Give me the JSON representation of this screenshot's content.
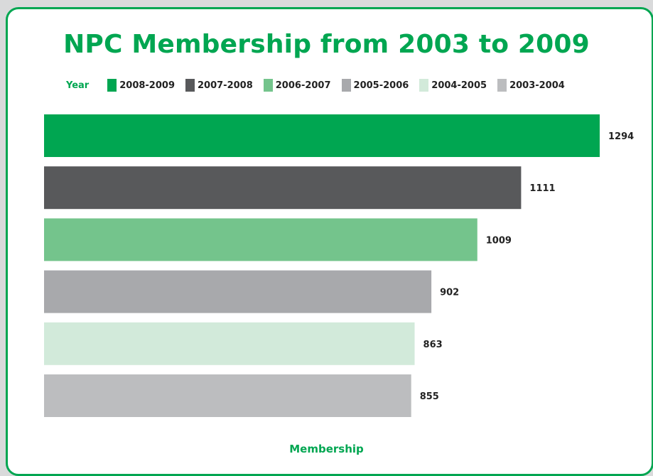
{
  "chart_data": {
    "type": "bar",
    "orientation": "horizontal",
    "title": "NPC Membership from 2003 to 2009",
    "legend_title": "Year",
    "legend_placement": "top",
    "xlabel": "Membership",
    "ylabel": "",
    "grid": false,
    "categories": [
      "2008-2009",
      "2007-2008",
      "2006-2007",
      "2005-2006",
      "2004-2005",
      "2003-2004"
    ],
    "values": [
      1294,
      1111,
      1009,
      902,
      863,
      855
    ],
    "colors": [
      "#00a651",
      "#58595b",
      "#74c48c",
      "#a8a9ac",
      "#d2eada",
      "#bcbdbf"
    ]
  },
  "theme": {
    "accent": "#00a651",
    "border": "#00a651",
    "background": "#ffffff"
  }
}
